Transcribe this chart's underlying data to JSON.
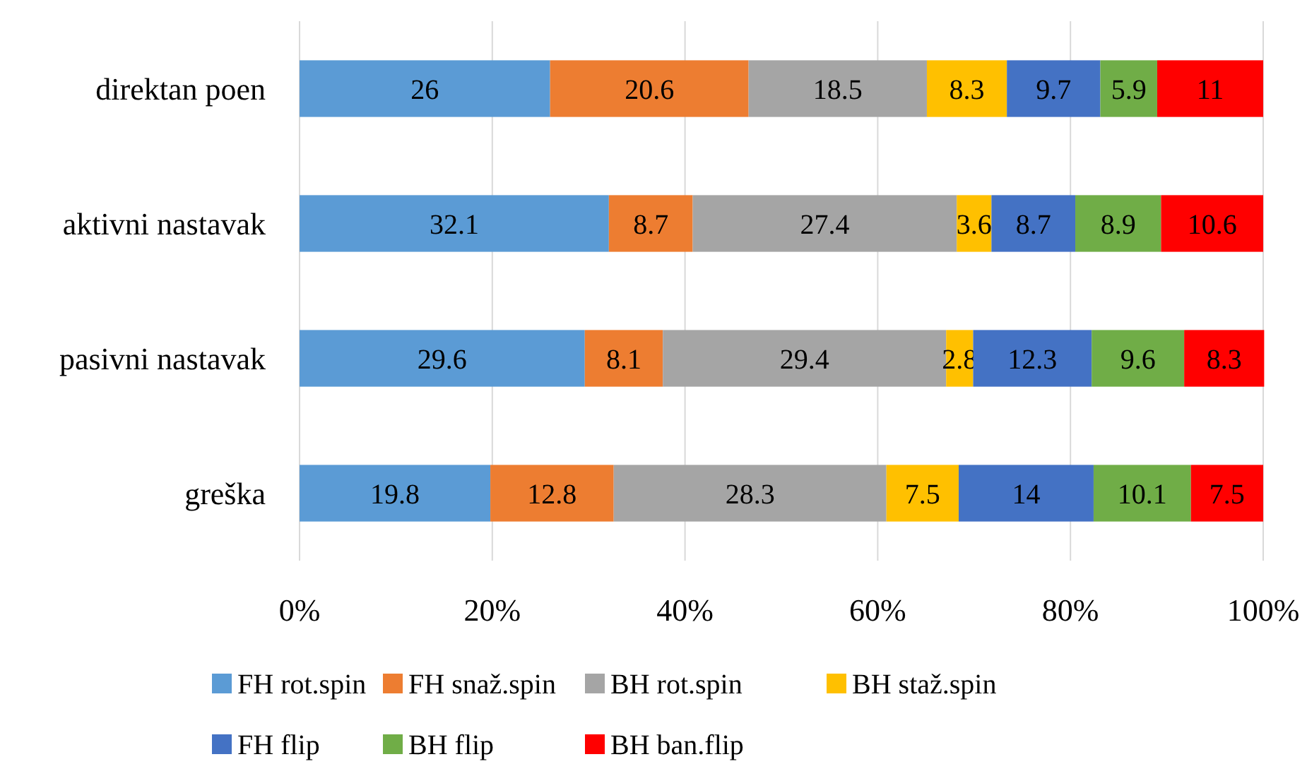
{
  "chart_data": {
    "type": "bar",
    "orientation": "horizontal",
    "stacked": true,
    "categories": [
      "direktan poen",
      "aktivni nastavak",
      "pasivni nastavak",
      "greška"
    ],
    "series": [
      {
        "name": "FH rot.spin",
        "color": "#5b9bd5",
        "values": [
          26,
          32.1,
          29.6,
          19.8
        ]
      },
      {
        "name": "FH snaž.spin",
        "color": "#ed7d31",
        "values": [
          20.6,
          8.7,
          8.1,
          12.8
        ]
      },
      {
        "name": "BH rot.spin",
        "color": "#a5a5a5",
        "values": [
          18.5,
          27.4,
          29.4,
          28.3
        ]
      },
      {
        "name": "BH staž.spin",
        "color": "#ffc000",
        "values": [
          8.3,
          3.6,
          2.8,
          7.5
        ]
      },
      {
        "name": "FH flip",
        "color": "#4472c4",
        "values": [
          9.7,
          8.7,
          12.3,
          14
        ]
      },
      {
        "name": "BH flip",
        "color": "#70ad47",
        "values": [
          5.9,
          8.9,
          9.6,
          10.1
        ]
      },
      {
        "name": "BH ban.flip",
        "color": "#ff0000",
        "values": [
          11,
          10.6,
          8.3,
          7.5
        ]
      }
    ],
    "xlim": [
      0,
      100
    ],
    "xticks": [
      {
        "value": 0,
        "label": "0%"
      },
      {
        "value": 20,
        "label": "20%"
      },
      {
        "value": 40,
        "label": "40%"
      },
      {
        "value": 60,
        "label": "60%"
      },
      {
        "value": 80,
        "label": "80%"
      },
      {
        "value": 100,
        "label": "100%"
      }
    ],
    "grid": "x",
    "legend": "bottom",
    "data_labels": true
  }
}
